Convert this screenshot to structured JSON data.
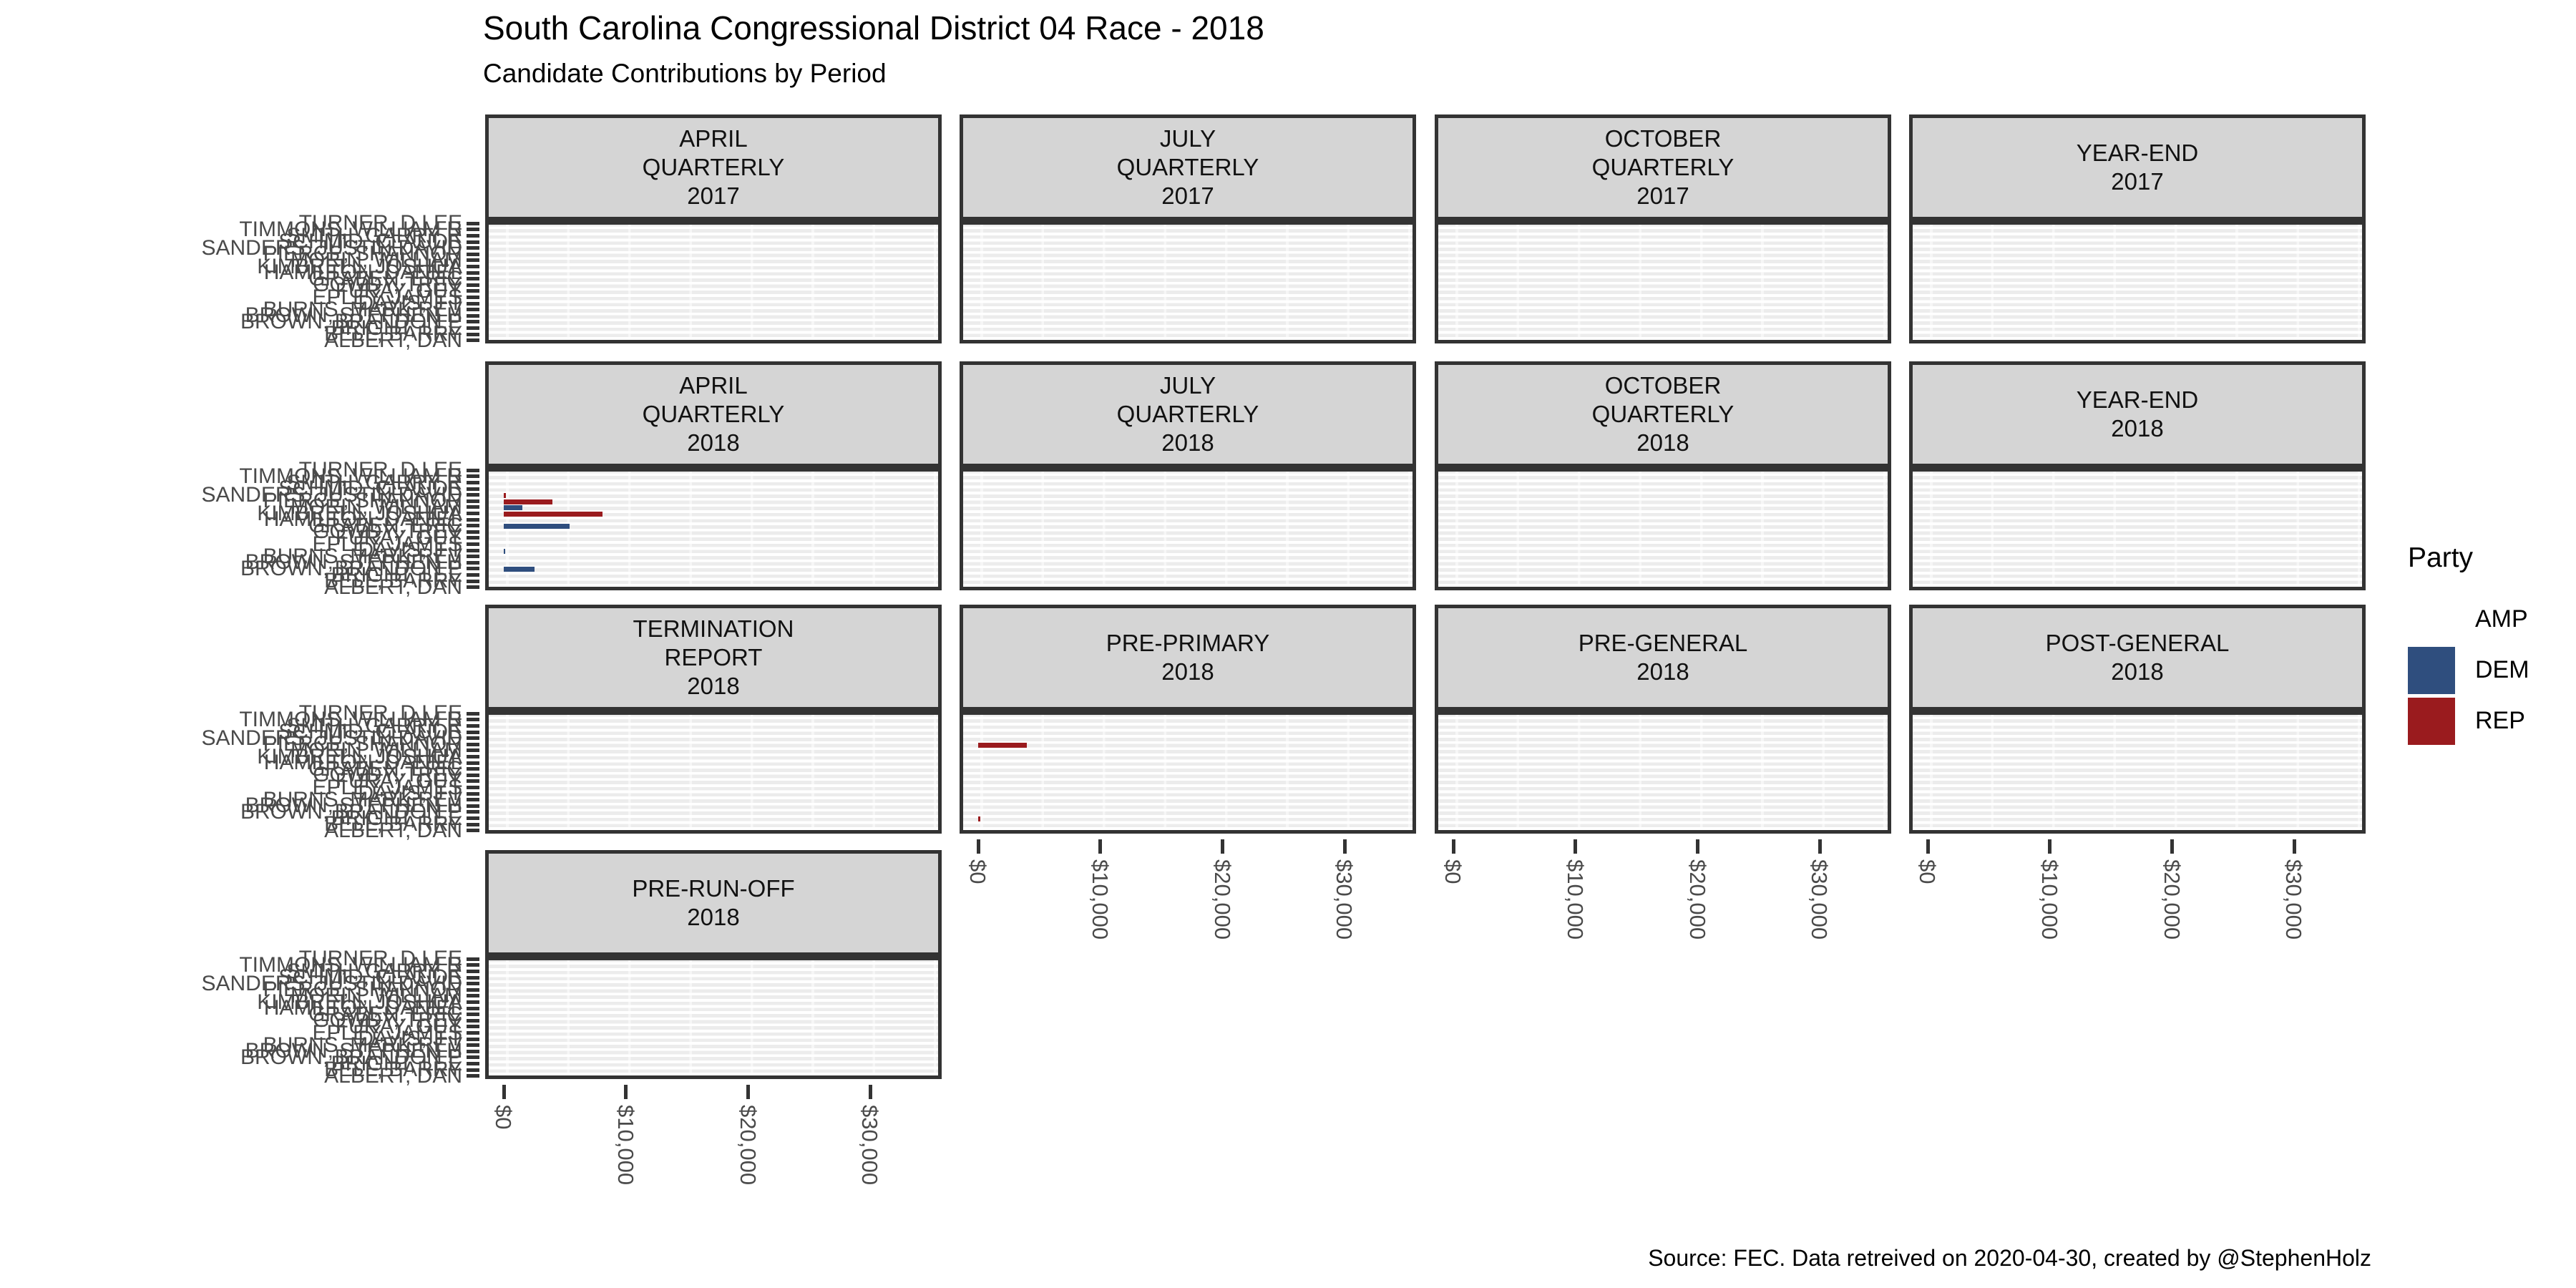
{
  "header": {
    "title": "South Carolina Congressional District 04 Race - 2018",
    "subtitle": "Candidate Contributions by Period"
  },
  "caption": "Source: FEC. Data retreived on 2020-04-30, created by @StephenHolz",
  "legend": {
    "title": "Party",
    "items": [
      {
        "label": "AMP",
        "color": "#FFFFFF"
      },
      {
        "label": "DEM",
        "color": "#2F4E7E"
      },
      {
        "label": "REP",
        "color": "#9A1B1E"
      }
    ]
  },
  "colors": {
    "dem_bar": "#2F4E7E",
    "rep_bar": "#9A1B1E",
    "amp_bar": "#FFFFFF",
    "strip_background": "#D5D5D5",
    "panel_border": "#333333",
    "axis_text": "#4A4A4A"
  },
  "chart_data": {
    "type": "bar",
    "orientation": "horizontal",
    "title": "South Carolina Congressional District 04 Race - 2018",
    "subtitle": "Candidate Contributions by Period",
    "caption": "Source: FEC. Data retreived on 2020-04-30, created by @StephenHolz",
    "unit": "USD",
    "grid": "on",
    "legend_position": "right",
    "x_ticks": [
      "$0",
      "$10,000",
      "$20,000",
      "$30,000"
    ],
    "x_tick_values": [
      0,
      10000,
      20000,
      30000
    ],
    "x_range": [
      0,
      35800
    ],
    "y_categories": [
      {
        "name": "TURNER, D LEE",
        "party": "DEM"
      },
      {
        "name": "TIMMONS, WILLIAM R",
        "party": "REP"
      },
      {
        "name": "SMITH, GARRY R",
        "party": "REP"
      },
      {
        "name": "SCHMID, CLAUDE",
        "party": "REP"
      },
      {
        "name": "SANDERS, JUSTIN DAVID",
        "party": "REP"
      },
      {
        "name": "PIERCE, SHANNON",
        "party": "REP"
      },
      {
        "name": "MORIN, WILLIAM",
        "party": "DEM"
      },
      {
        "name": "KIMBRELL, JOSHUA",
        "party": "REP"
      },
      {
        "name": "HAMILTON, DANIEL",
        "party": "REP"
      },
      {
        "name": "GRABEN, ERIC",
        "party": "DEM"
      },
      {
        "name": "GOWDY, TREY",
        "party": "REP"
      },
      {
        "name": "FURAY, GUY",
        "party": "AMP"
      },
      {
        "name": "EPLEY, JAMES",
        "party": "REP"
      },
      {
        "name": "DAVIS, J T",
        "party": "DEM"
      },
      {
        "name": "BURNS, MARK REV",
        "party": "REP"
      },
      {
        "name": "BROWN, STEPHEN H",
        "party": "REP"
      },
      {
        "name": "BROWN, BRANDON P",
        "party": "DEM"
      },
      {
        "name": "BRIGHT, LEE",
        "party": "REP"
      },
      {
        "name": "BELL, BARRY",
        "party": "REP"
      },
      {
        "name": "ALBERT, DAN",
        "party": "REP"
      }
    ],
    "facets": [
      {
        "strip": "APRIL\nQUARTERLY\n2017",
        "bars": []
      },
      {
        "strip": "JULY\nQUARTERLY\n2017",
        "bars": []
      },
      {
        "strip": "OCTOBER\nQUARTERLY\n2017",
        "bars": []
      },
      {
        "strip": "YEAR-END\n2017",
        "bars": []
      },
      {
        "strip": "APRIL\nQUARTERLY\n2018",
        "bars": [
          {
            "row": 5,
            "candidate": "SANDERS, JUSTIN DAVID",
            "party": "REP",
            "value": 150
          },
          {
            "row": 6,
            "candidate": "PIERCE, SHANNON",
            "party": "REP",
            "value": 4000
          },
          {
            "row": 7,
            "candidate": "MORIN, WILLIAM",
            "party": "DEM",
            "value": 1500
          },
          {
            "row": 8,
            "candidate": "KIMBRELL, JOSHUA",
            "party": "REP",
            "value": 8100
          },
          {
            "row": 10,
            "candidate": "GRABEN, ERIC",
            "party": "DEM",
            "value": 5400
          },
          {
            "row": 14,
            "candidate": "DAVIS, J T",
            "party": "DEM",
            "value": 100
          },
          {
            "row": 17,
            "candidate": "BROWN, BRANDON P",
            "party": "DEM",
            "value": 2500
          }
        ]
      },
      {
        "strip": "JULY\nQUARTERLY\n2018",
        "bars": []
      },
      {
        "strip": "OCTOBER\nQUARTERLY\n2018",
        "bars": []
      },
      {
        "strip": "YEAR-END\n2018",
        "bars": []
      },
      {
        "strip": "TERMINATION\nREPORT\n2018",
        "bars": []
      },
      {
        "strip": "PRE-PRIMARY\n2018",
        "bars": [
          {
            "row": 6,
            "candidate": "PIERCE, SHANNON",
            "party": "REP",
            "value": 4000
          },
          {
            "row": 18,
            "candidate": "BRIGHT, LEE",
            "party": "REP",
            "value": 150
          }
        ]
      },
      {
        "strip": "PRE-GENERAL\n2018",
        "bars": []
      },
      {
        "strip": "POST-GENERAL\n2018",
        "bars": []
      },
      {
        "strip": "PRE-RUN-OFF\n2018",
        "bars": []
      }
    ]
  }
}
